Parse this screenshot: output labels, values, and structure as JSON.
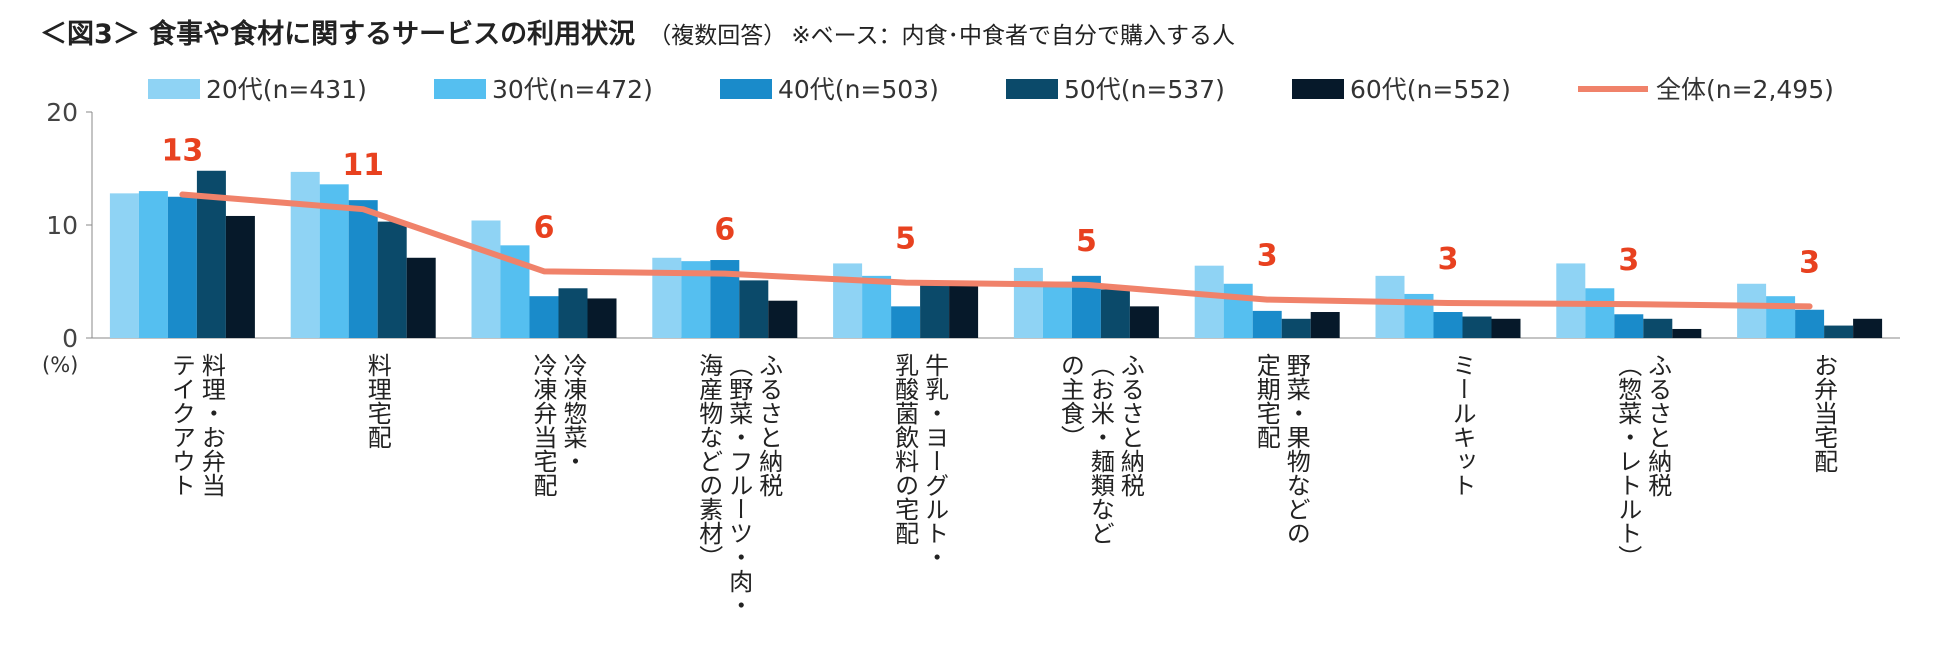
{
  "chart_data": {
    "type": "bar",
    "title": "＜図3＞ 食事や食材に関するサービスの利用状況",
    "subtitle": "（複数回答）",
    "note": "※ベース：内食･中食者で自分で購入する人",
    "ylabel": "(%)",
    "ylim": [
      0,
      20
    ],
    "yticks": [
      0,
      10,
      20
    ],
    "legend_position": "top",
    "categories": [
      [
        "料理・お弁当",
        "テイクアウト"
      ],
      [
        "料理宅配"
      ],
      [
        "冷凍惣菜・",
        "冷凍弁当宅配"
      ],
      [
        "ふるさと納税",
        "（野菜・フルーツ・肉・",
        "海産物などの素材）"
      ],
      [
        "牛乳・ヨーグルト・",
        "乳酸菌飲料の宅配"
      ],
      [
        "ふるさと納税",
        "（お米・麺類など",
        "の主食）"
      ],
      [
        "野菜・果物などの",
        "定期宅配"
      ],
      [
        "ミールキット"
      ],
      [
        "ふるさと納税",
        "（惣菜・レトルト）"
      ],
      [
        "お弁当宅配"
      ]
    ],
    "series": [
      {
        "name": "20代(n=431)",
        "color": "#8fd3f4",
        "values": [
          12.8,
          14.7,
          10.4,
          7.1,
          6.6,
          6.2,
          6.4,
          5.5,
          6.6,
          4.8
        ]
      },
      {
        "name": "30代(n=472)",
        "color": "#55bff0",
        "values": [
          13.0,
          13.6,
          8.2,
          6.8,
          5.5,
          5.0,
          4.8,
          3.9,
          4.4,
          3.7
        ]
      },
      {
        "name": "40代(n=503)",
        "color": "#1a8bca",
        "values": [
          12.5,
          12.2,
          3.7,
          6.9,
          2.8,
          5.5,
          2.4,
          2.3,
          2.1,
          2.5
        ]
      },
      {
        "name": "50代(n=537)",
        "color": "#0b4a6a",
        "values": [
          14.8,
          10.3,
          4.4,
          5.1,
          5.0,
          4.3,
          1.7,
          1.9,
          1.7,
          1.1
        ]
      },
      {
        "name": "60代(n=552)",
        "color": "#06192a",
        "values": [
          10.8,
          7.1,
          3.5,
          3.3,
          4.7,
          2.8,
          2.3,
          1.7,
          0.8,
          1.7
        ]
      }
    ],
    "total": {
      "name": "全体(n=2,495)",
      "color": "#f0826a",
      "values": [
        12.7,
        11.4,
        5.9,
        5.7,
        4.9,
        4.7,
        3.4,
        3.1,
        3.0,
        2.8
      ],
      "labels": [
        "13",
        "11",
        "6",
        "6",
        "5",
        "5",
        "3",
        "3",
        "3",
        "3"
      ],
      "label_color": "#e8411f"
    }
  }
}
